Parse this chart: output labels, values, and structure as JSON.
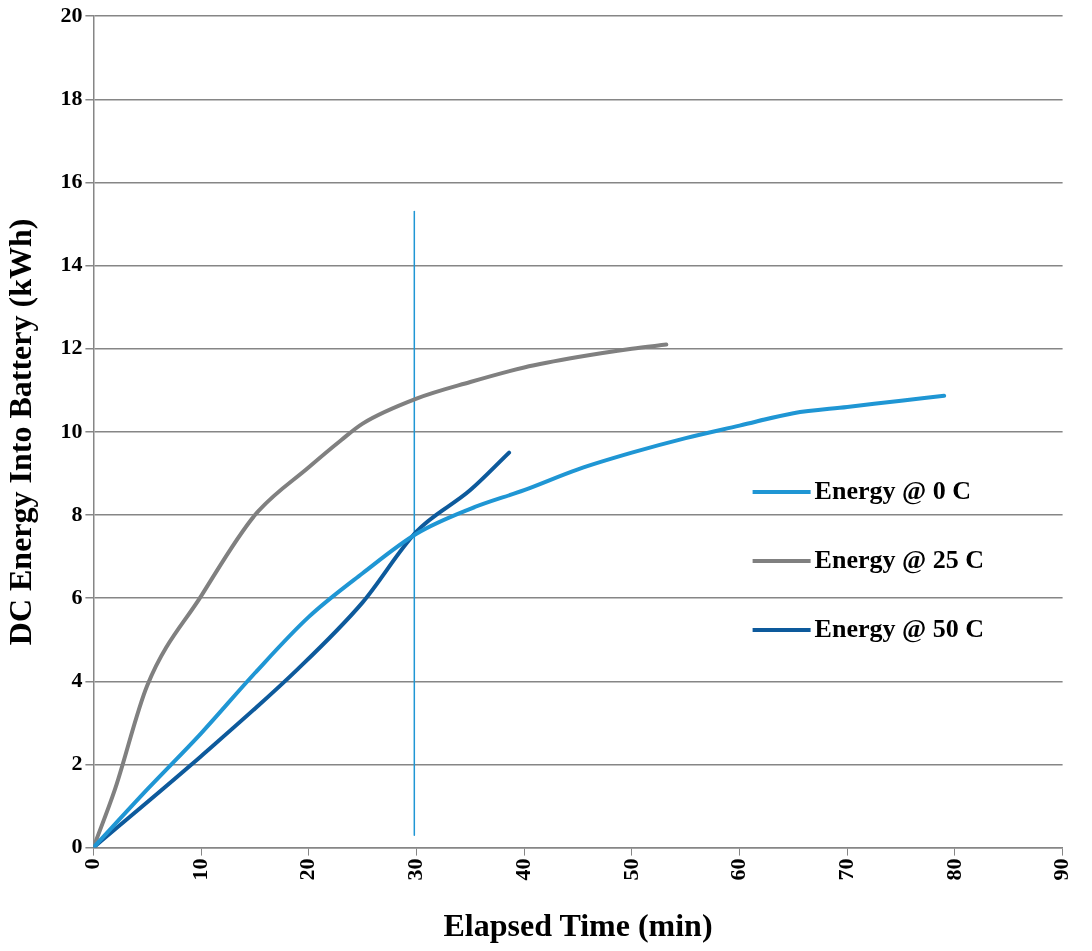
{
  "chart_data": {
    "type": "line",
    "xlabel": "Elapsed Time (min)",
    "ylabel": "DC Energy Into Battery (kWh)",
    "xlim": [
      0,
      90
    ],
    "xticks": [
      0,
      10,
      20,
      30,
      40,
      50,
      60,
      70,
      80,
      90
    ],
    "ylim": [
      0,
      20
    ],
    "yticks": [
      0,
      2,
      4,
      6,
      8,
      10,
      12,
      14,
      16,
      18,
      20
    ],
    "grid": "y",
    "legend": "right",
    "marker": "none",
    "line_style": "solid",
    "series": [
      {
        "name": "Energy @ 0 C",
        "color": "#1f96d4",
        "x": [
          0,
          5,
          10,
          15,
          20,
          25,
          30,
          35,
          40,
          45,
          50,
          55,
          60,
          65,
          70,
          75,
          79
        ],
        "values": [
          0,
          1.4,
          2.75,
          4.2,
          5.55,
          6.6,
          7.55,
          8.15,
          8.6,
          9.1,
          9.5,
          9.85,
          10.15,
          10.45,
          10.6,
          10.75,
          10.87
        ]
      },
      {
        "name": "Energy @ 25 C",
        "color": "#808080",
        "x": [
          0,
          2,
          5,
          10,
          15,
          20,
          23,
          25,
          30,
          35,
          40,
          45,
          50,
          53.2
        ],
        "values": [
          0,
          1.4,
          3.9,
          6.05,
          8.0,
          9.15,
          9.8,
          10.2,
          10.8,
          11.2,
          11.55,
          11.8,
          12.0,
          12.1
        ]
      },
      {
        "name": "Energy @ 50 C",
        "color": "#0d5a9c",
        "x": [
          0,
          10,
          19,
          25,
          30,
          35,
          38.6
        ],
        "values": [
          0,
          2.2,
          4.3,
          5.9,
          7.6,
          8.6,
          9.5
        ]
      },
      {
        "color": "#1f96d4",
        "x": [
          29.8,
          29.8
        ],
        "values": [
          0.3,
          15.3
        ]
      }
    ]
  }
}
